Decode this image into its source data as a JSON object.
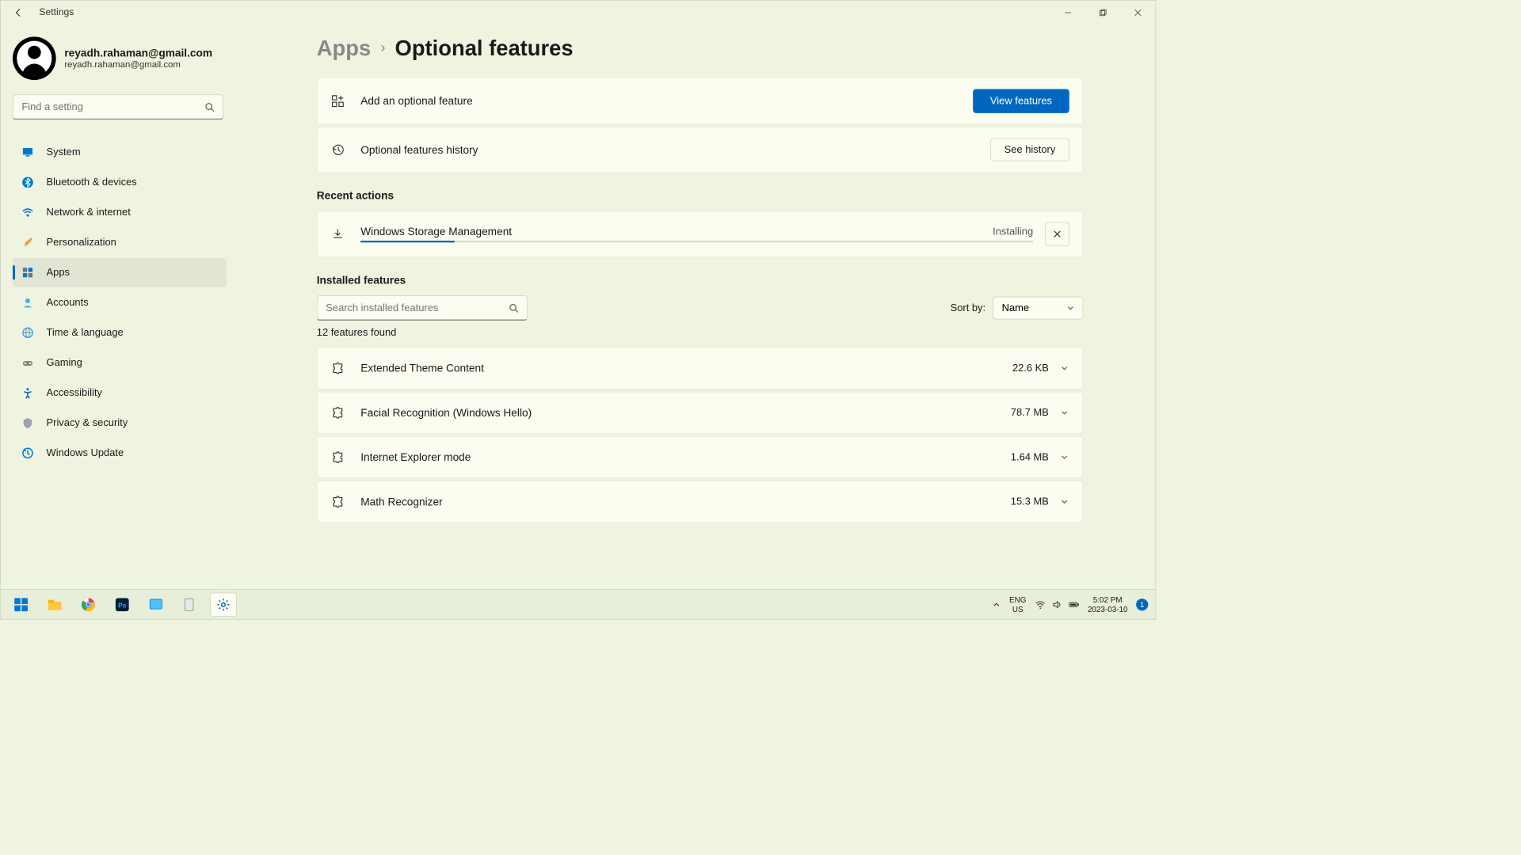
{
  "window": {
    "title": "Settings"
  },
  "user": {
    "name": "reyadh.rahaman@gmail.com",
    "email": "reyadh.rahaman@gmail.com"
  },
  "search": {
    "placeholder": "Find a setting"
  },
  "nav": {
    "items": [
      {
        "label": "System",
        "icon": "monitor",
        "active": false
      },
      {
        "label": "Bluetooth & devices",
        "icon": "bluetooth",
        "active": false
      },
      {
        "label": "Network & internet",
        "icon": "wifi",
        "active": false
      },
      {
        "label": "Personalization",
        "icon": "brush",
        "active": false
      },
      {
        "label": "Apps",
        "icon": "apps",
        "active": true
      },
      {
        "label": "Accounts",
        "icon": "person",
        "active": false
      },
      {
        "label": "Time & language",
        "icon": "globe",
        "active": false
      },
      {
        "label": "Gaming",
        "icon": "gamepad",
        "active": false
      },
      {
        "label": "Accessibility",
        "icon": "accessibility",
        "active": false
      },
      {
        "label": "Privacy & security",
        "icon": "shield",
        "active": false
      },
      {
        "label": "Windows Update",
        "icon": "update",
        "active": false
      }
    ]
  },
  "breadcrumb": {
    "parent": "Apps",
    "current": "Optional features"
  },
  "addFeature": {
    "label": "Add an optional feature",
    "button": "View features"
  },
  "history": {
    "label": "Optional features history",
    "button": "See history"
  },
  "recentActions": {
    "title": "Recent actions",
    "item": {
      "name": "Windows Storage Management",
      "status": "Installing",
      "progress_pct": 14
    }
  },
  "installed": {
    "title": "Installed features",
    "search_placeholder": "Search installed features",
    "sort_label": "Sort by:",
    "sort_value": "Name",
    "count_text": "12 features found",
    "items": [
      {
        "name": "Extended Theme Content",
        "size": "22.6 KB"
      },
      {
        "name": "Facial Recognition (Windows Hello)",
        "size": "78.7 MB"
      },
      {
        "name": "Internet Explorer mode",
        "size": "1.64 MB"
      },
      {
        "name": "Math Recognizer",
        "size": "15.3 MB"
      }
    ]
  },
  "taskbar": {
    "lang1": "ENG",
    "lang2": "US",
    "time": "5:02 PM",
    "date": "2023-03-10",
    "notif_count": "1"
  },
  "colors": {
    "accent": "#0067c0",
    "window_bg": "#eef4df",
    "card_bg": "#fafdf0"
  }
}
